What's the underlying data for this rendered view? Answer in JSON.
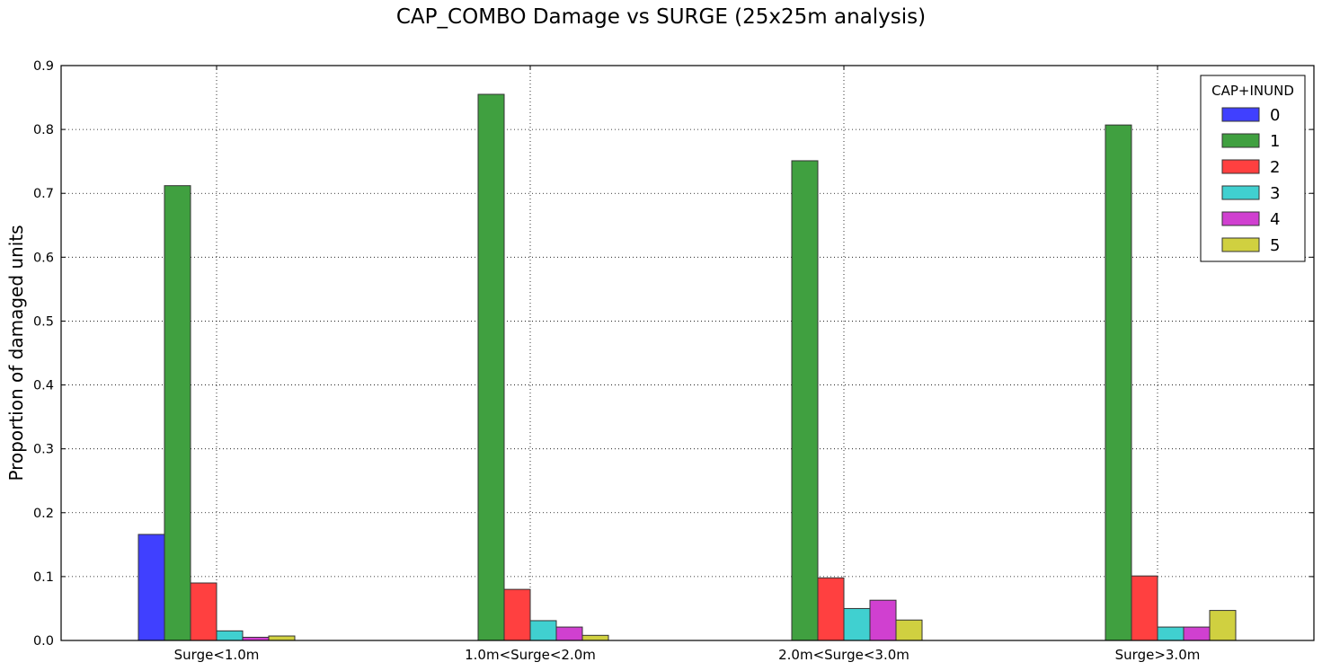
{
  "chart_data": {
    "type": "bar",
    "title": "CAP_COMBO Damage vs SURGE (25x25m analysis)",
    "xlabel": "",
    "ylabel": "Proportion of damaged units",
    "ylim": [
      0,
      0.9
    ],
    "yticks": [
      "0.0",
      "0.1",
      "0.2",
      "0.3",
      "0.4",
      "0.5",
      "0.6",
      "0.7",
      "0.8",
      "0.9"
    ],
    "grid": true,
    "categories": [
      "Surge<1.0m",
      "1.0m<Surge<2.0m",
      "2.0m<Surge<3.0m",
      "Surge>3.0m"
    ],
    "legend": {
      "title": "CAP+INUND",
      "placement": "top-right"
    },
    "series": [
      {
        "name": "0",
        "color": "#4040ff",
        "values": [
          0.166,
          0,
          0,
          0
        ]
      },
      {
        "name": "1",
        "color": "#40a040",
        "values": [
          0.712,
          0.855,
          0.751,
          0.807
        ]
      },
      {
        "name": "2",
        "color": "#ff4040",
        "values": [
          0.09,
          0.08,
          0.098,
          0.101
        ]
      },
      {
        "name": "3",
        "color": "#40d0d0",
        "values": [
          0.015,
          0.031,
          0.05,
          0.021
        ]
      },
      {
        "name": "4",
        "color": "#d040d0",
        "values": [
          0.005,
          0.021,
          0.063,
          0.021
        ]
      },
      {
        "name": "5",
        "color": "#d0d040",
        "values": [
          0.007,
          0.008,
          0.032,
          0.047
        ]
      }
    ]
  }
}
